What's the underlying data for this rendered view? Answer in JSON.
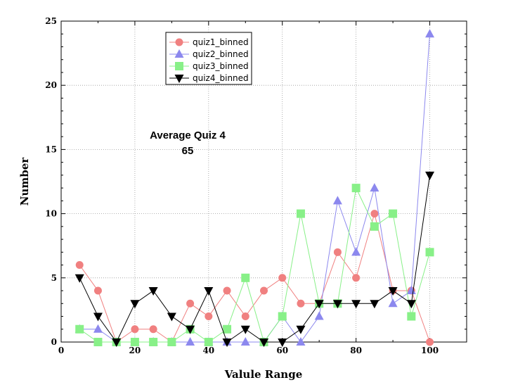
{
  "chart_data": {
    "type": "line",
    "title": "",
    "xlabel": "Valule Range",
    "ylabel": "Number",
    "xlim": [
      0,
      110
    ],
    "ylim": [
      0,
      25
    ],
    "grid": true,
    "legend_position": "top-left",
    "x_ticks": [
      0,
      20,
      40,
      60,
      80,
      100
    ],
    "y_ticks": [
      0,
      5,
      10,
      15,
      20,
      25
    ],
    "x": [
      5,
      10,
      15,
      20,
      25,
      30,
      35,
      40,
      45,
      50,
      55,
      60,
      65,
      70,
      75,
      80,
      85,
      90,
      95,
      100
    ],
    "series": [
      {
        "name": "quiz1_binned",
        "color": "#f08080",
        "marker": "circle",
        "values": [
          6,
          4,
          0,
          1,
          1,
          0,
          3,
          2,
          4,
          2,
          4,
          5,
          3,
          3,
          7,
          5,
          10,
          4,
          4,
          0
        ]
      },
      {
        "name": "quiz2_binned",
        "color": "#8c88ee",
        "marker": "triangle-up",
        "values": [
          1,
          1,
          0,
          0,
          0,
          0,
          0,
          0,
          0,
          0,
          0,
          2,
          0,
          2,
          11,
          7,
          12,
          3,
          4,
          24
        ]
      },
      {
        "name": "quiz3_binned",
        "color": "#88f088",
        "marker": "square",
        "values": [
          1,
          0,
          0,
          0,
          0,
          0,
          1,
          0,
          1,
          5,
          0,
          2,
          10,
          3,
          3,
          12,
          9,
          10,
          2,
          7
        ]
      },
      {
        "name": "quiz4_binned",
        "color": "#000000",
        "marker": "triangle-down",
        "values": [
          5,
          2,
          0,
          3,
          4,
          2,
          1,
          4,
          0,
          1,
          0,
          0,
          1,
          3,
          3,
          3,
          3,
          4,
          3,
          13
        ]
      }
    ],
    "annotations": [
      "Average Quiz 4",
      "65"
    ]
  }
}
